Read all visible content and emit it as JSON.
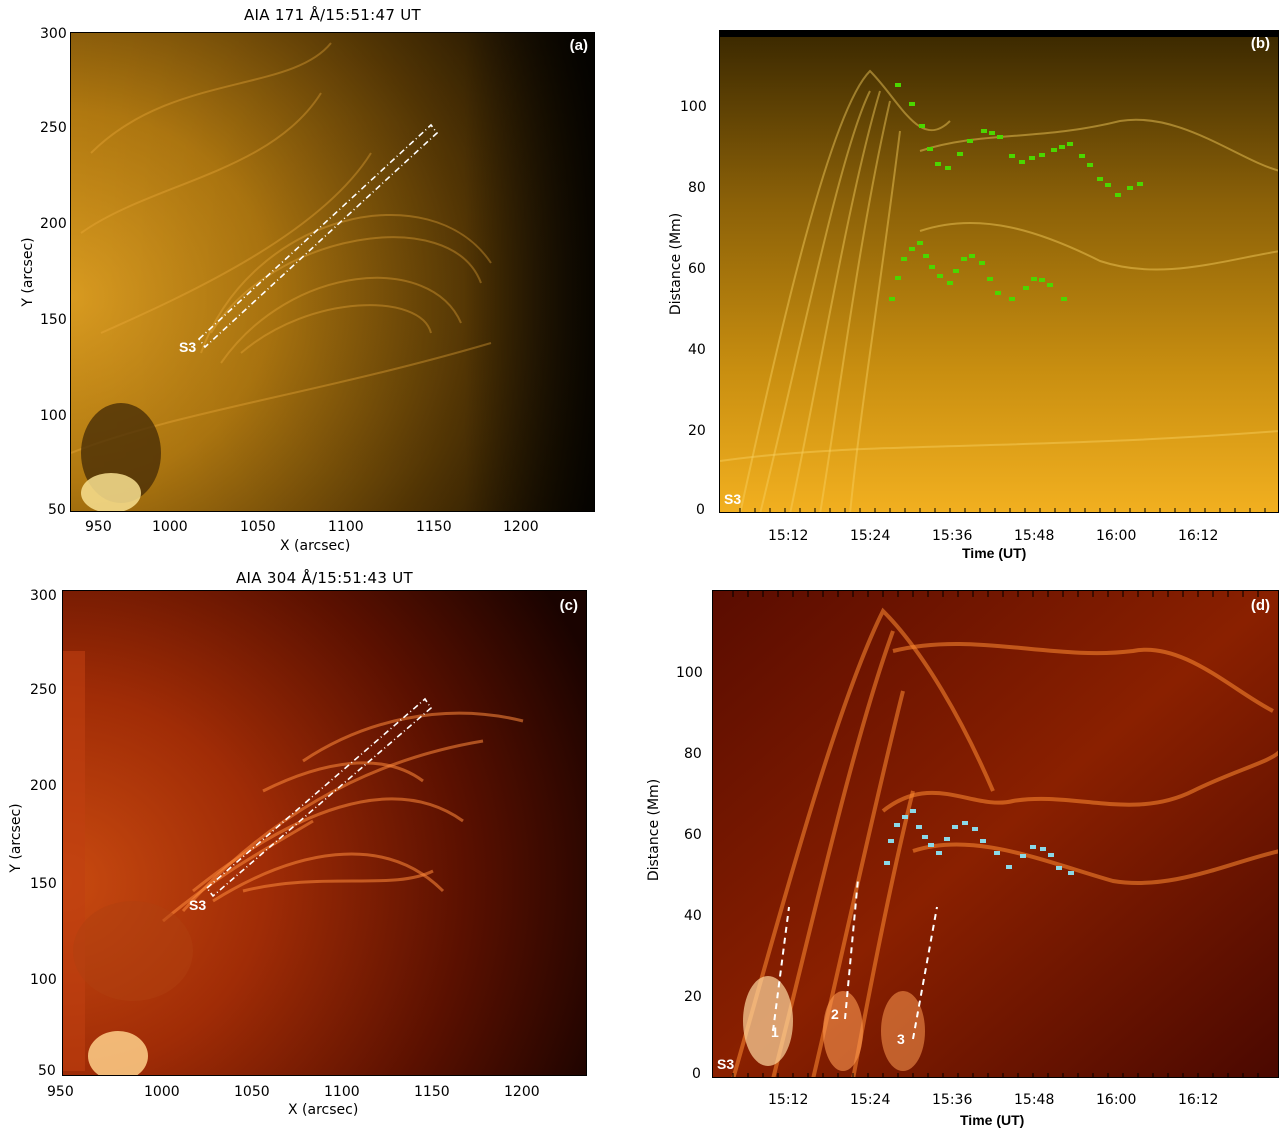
{
  "panel_a": {
    "title": "AIA 171 Å/15:51:47 UT",
    "tag": "(a)",
    "slit_label": "S3",
    "xlabel": "X (arcsec)",
    "ylabel": "Y (arcsec)",
    "xticks": [
      "950",
      "1000",
      "1050",
      "1100",
      "1150",
      "1200"
    ],
    "yticks": [
      "300",
      "250",
      "200",
      "150",
      "100",
      "50"
    ]
  },
  "panel_b": {
    "tag": "(b)",
    "slit_label": "S3",
    "xlabel": "Time (UT)",
    "ylabel": "Distance (Mm)",
    "xticks": [
      "15:12",
      "15:24",
      "15:36",
      "15:48",
      "16:00",
      "16:12"
    ],
    "yticks": [
      "100",
      "80",
      "60",
      "40",
      "20",
      "0"
    ]
  },
  "panel_c": {
    "title": "AIA 304 Å/15:51:43 UT",
    "tag": "(c)",
    "slit_label": "S3",
    "xlabel": "X (arcsec)",
    "ylabel": "Y (arcsec)",
    "xticks": [
      "950",
      "1000",
      "1050",
      "1100",
      "1150",
      "1200"
    ],
    "yticks": [
      "300",
      "250",
      "200",
      "150",
      "100",
      "50"
    ]
  },
  "panel_d": {
    "tag": "(d)",
    "slit_label": "S3",
    "xlabel": "Time (UT)",
    "ylabel": "Distance (Mm)",
    "xticks": [
      "15:12",
      "15:24",
      "15:36",
      "15:48",
      "16:00",
      "16:12"
    ],
    "yticks": [
      "100",
      "80",
      "60",
      "40",
      "20",
      "0"
    ],
    "track_labels": [
      "1",
      "2",
      "3"
    ]
  },
  "colors": {
    "aia171_dark": "#2a1a00",
    "aia171_bright": "#f2b020",
    "aia304_dark": "#3a0600",
    "aia304_bright": "#ff9a3a",
    "marker_green": "#4cd600",
    "marker_cyan": "#8ad8e8"
  }
}
